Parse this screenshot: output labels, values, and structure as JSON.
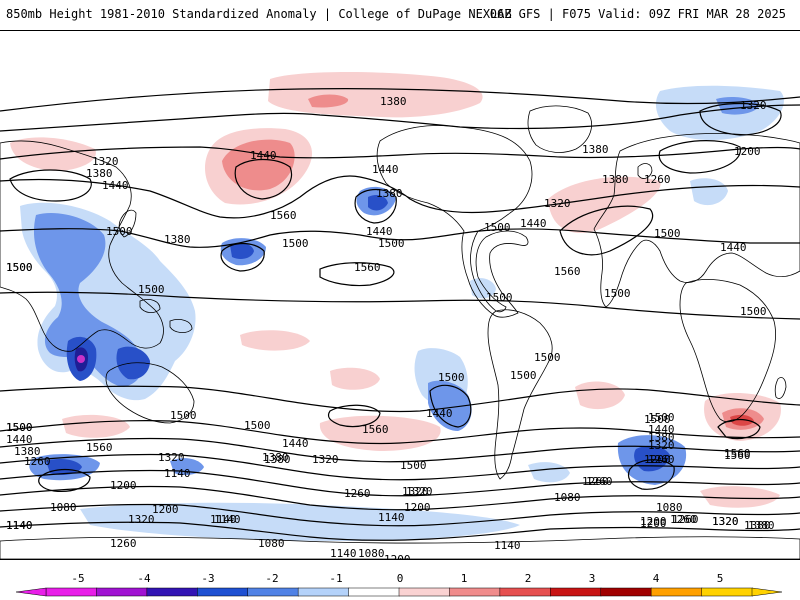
{
  "header": {
    "title": "850mb Height 1981-2010 Standardized Anomaly | College of DuPage NEXLAB",
    "run": "06Z GFS | F075 Valid: 09Z FRI MAR 28 2025"
  },
  "contour_labels": [
    {
      "text": "1380"
    },
    {
      "text": "1320"
    },
    {
      "text": "1320"
    },
    {
      "text": "1380"
    },
    {
      "text": "1440"
    },
    {
      "text": "1440"
    },
    {
      "text": "1440"
    },
    {
      "text": "1560"
    },
    {
      "text": "1380"
    },
    {
      "text": "1380"
    },
    {
      "text": "1380"
    },
    {
      "text": "1320"
    },
    {
      "text": "1260"
    },
    {
      "text": "1200"
    },
    {
      "text": "1440"
    },
    {
      "text": "1500"
    },
    {
      "text": "1500"
    },
    {
      "text": "1500"
    },
    {
      "text": "1380"
    },
    {
      "text": "1440"
    },
    {
      "text": "1500"
    },
    {
      "text": "1500"
    },
    {
      "text": "1500"
    },
    {
      "text": "1560"
    },
    {
      "text": "1500"
    },
    {
      "text": "1440"
    },
    {
      "text": "1500"
    },
    {
      "text": "1500"
    },
    {
      "text": "1560"
    },
    {
      "text": "1500"
    },
    {
      "text": "1500"
    },
    {
      "text": "1500"
    },
    {
      "text": "1500"
    },
    {
      "text": "1500"
    },
    {
      "text": "1500"
    },
    {
      "text": "1500"
    },
    {
      "text": "1500"
    },
    {
      "text": "1440"
    },
    {
      "text": "1560"
    },
    {
      "text": "1500"
    },
    {
      "text": "1500"
    },
    {
      "text": "1440"
    },
    {
      "text": "1380"
    },
    {
      "text": "1320"
    },
    {
      "text": "1260"
    },
    {
      "text": "1560"
    },
    {
      "text": "1380"
    },
    {
      "text": "1320"
    },
    {
      "text": "1260"
    },
    {
      "text": "1440"
    },
    {
      "text": "1500"
    },
    {
      "text": "1560"
    },
    {
      "text": "1200"
    },
    {
      "text": "1140"
    },
    {
      "text": "1320"
    },
    {
      "text": "1200"
    },
    {
      "text": "1140"
    },
    {
      "text": "1260"
    },
    {
      "text": "1080"
    },
    {
      "text": "1080"
    },
    {
      "text": "1140"
    },
    {
      "text": "1200"
    },
    {
      "text": "1080"
    },
    {
      "text": "1140"
    },
    {
      "text": "1200"
    },
    {
      "text": "1260"
    },
    {
      "text": "1320"
    },
    {
      "text": "1380"
    },
    {
      "text": "1260"
    },
    {
      "text": "1320"
    },
    {
      "text": "1200"
    },
    {
      "text": "1140"
    },
    {
      "text": "1080"
    },
    {
      "text": "1200"
    },
    {
      "text": "1260"
    },
    {
      "text": "1320"
    },
    {
      "text": "1380"
    },
    {
      "text": "1200"
    },
    {
      "text": "1140"
    },
    {
      "text": "1080"
    },
    {
      "text": "1140"
    },
    {
      "text": "1140"
    },
    {
      "text": "1260"
    },
    {
      "text": "1320"
    },
    {
      "text": "1380"
    },
    {
      "text": "1500"
    },
    {
      "text": "1440"
    },
    {
      "text": "1380"
    },
    {
      "text": "1320"
    },
    {
      "text": "1260"
    },
    {
      "text": "1560"
    }
  ],
  "colorbar": {
    "ticks": [
      "-5",
      "-4",
      "-3",
      "-2",
      "-1",
      "0",
      "1",
      "2",
      "3",
      "4",
      "5"
    ],
    "colors": [
      "#e81ee8",
      "#a012d2",
      "#3214b4",
      "#1e50d2",
      "#5082e6",
      "#b4d2fa",
      "#ffffff",
      "#fad2d2",
      "#f08c8c",
      "#e65050",
      "#c81414",
      "#a00000",
      "#ffa000",
      "#ffd200"
    ]
  },
  "palette": {
    "neg1": "#c6dcf8",
    "neg2": "#6e96ea",
    "neg3": "#2850c8",
    "neg4": "#1e1e96",
    "neg5": "#c832c8",
    "pos1": "#f8d0d0",
    "pos2": "#ee8c8c",
    "pos3": "#dc4646",
    "land": "#000000"
  }
}
